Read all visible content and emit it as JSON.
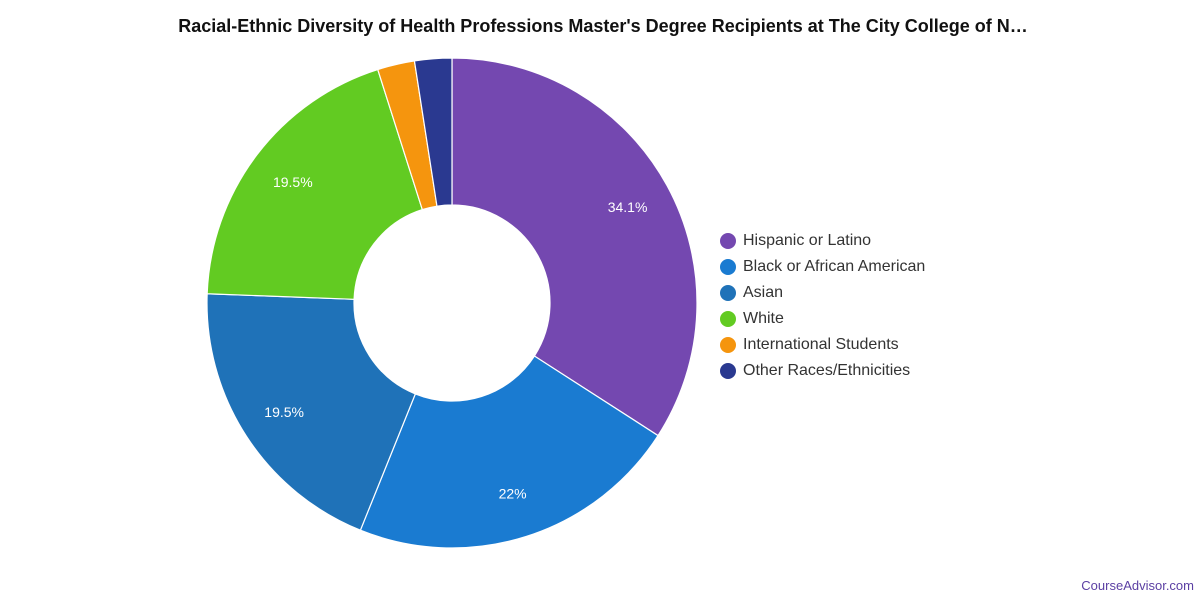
{
  "chart_data": {
    "type": "pie",
    "donut": true,
    "title": "Racial-Ethnic Diversity of Health Professions Master's Degree Recipients at The City College of N…",
    "slices": [
      {
        "label": "Hispanic or Latino",
        "value": 34.1,
        "display": "34.1%",
        "color": "#7448b0"
      },
      {
        "label": "Black or African American",
        "value": 22.0,
        "display": "22%",
        "color": "#1a7bd1"
      },
      {
        "label": "Asian",
        "value": 19.5,
        "display": "19.5%",
        "color": "#1f72b8"
      },
      {
        "label": "White",
        "value": 19.5,
        "display": "19.5%",
        "color": "#62cb22"
      },
      {
        "label": "International Students",
        "value": 2.45,
        "display": "",
        "color": "#f5950e"
      },
      {
        "label": "Other Races/Ethnicities",
        "value": 2.45,
        "display": "",
        "color": "#2a3990"
      }
    ],
    "legend_position": "right"
  },
  "footer": {
    "source": "CourseAdvisor.com"
  }
}
